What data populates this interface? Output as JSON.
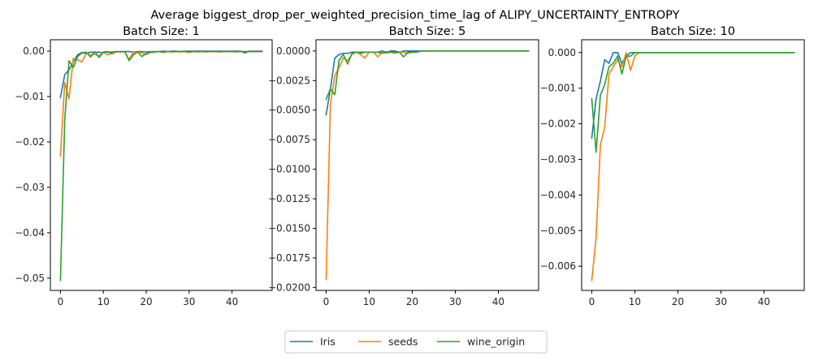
{
  "figure": {
    "title": "Average biggest_drop_per_weighted_precision_time_lag of ALIPY_UNCERTAINTY_ENTROPY"
  },
  "legend": {
    "placement": "bottom-center",
    "entries": [
      {
        "name": "Iris",
        "color": "#1f77b4"
      },
      {
        "name": "seeds",
        "color": "#ff7f0e"
      },
      {
        "name": "wine_origin",
        "color": "#2ca02c"
      }
    ]
  },
  "chart_data": [
    {
      "type": "line",
      "title": "Batch Size: 1",
      "xlabel": "",
      "ylabel": "",
      "xlim": [
        -2.35,
        49.35
      ],
      "ylim": [
        -0.0527,
        0.0025
      ],
      "xticks": [
        0,
        10,
        20,
        30,
        40
      ],
      "xtick_labels": [
        "0",
        "10",
        "20",
        "30",
        "40"
      ],
      "yticks": [
        0.0,
        -0.01,
        -0.02,
        -0.03,
        -0.04,
        -0.05
      ],
      "ytick_labels": [
        "0.00",
        "−0.01",
        "−0.02",
        "−0.03",
        "−0.04",
        "−0.05"
      ],
      "grid": false,
      "x": [
        0,
        1,
        2,
        3,
        4,
        5,
        6,
        7,
        8,
        9,
        10,
        11,
        12,
        13,
        14,
        15,
        16,
        17,
        18,
        19,
        20,
        21,
        22,
        23,
        24,
        25,
        26,
        27,
        28,
        29,
        30,
        31,
        32,
        33,
        34,
        35,
        36,
        37,
        38,
        39,
        40,
        41,
        42,
        43,
        44,
        45,
        46,
        47
      ],
      "series": [
        {
          "name": "Iris",
          "color": "#1f77b4",
          "values": [
            -0.0102,
            -0.0052,
            -0.0041,
            -0.0024,
            -0.0008,
            -0.0003,
            -0.0006,
            -0.0002,
            -0.0003,
            -0.0002,
            -0.0004,
            -0.0002,
            -0.0002,
            -0.0001,
            -0.0002,
            -0.0001,
            -0.0001,
            -0.0002,
            -0.0001,
            -0.0001,
            -0.0002,
            -0.0001,
            -0.0001,
            -0.0001,
            0,
            -0.0001,
            0,
            0,
            -0.0001,
            0,
            0,
            0,
            0,
            0,
            0,
            0,
            0,
            0,
            0,
            0,
            0,
            0,
            0,
            -0.0004,
            0,
            0,
            0,
            0
          ]
        },
        {
          "name": "seeds",
          "color": "#ff7f0e",
          "values": [
            -0.0231,
            -0.0069,
            -0.0105,
            -0.0016,
            -0.0019,
            -0.0024,
            -0.0005,
            -0.0009,
            -0.0007,
            -0.0011,
            -0.0003,
            -0.0008,
            -0.0004,
            -0.0002,
            -0.0001,
            -0.0002,
            -0.0018,
            -0.0003,
            -0.0002,
            -0.0004,
            -0.0008,
            -0.0002,
            -0.0001,
            -0.0001,
            -0.0003,
            -0.0001,
            -0.0002,
            -0.0001,
            -0.0002,
            -0.0001,
            -0.0003,
            -0.0001,
            -0.0002,
            -0.0001,
            -0.0002,
            -0.0001,
            -0.0001,
            -0.0002,
            -0.0001,
            -0.0001,
            -0.0001,
            -0.0002,
            -0.0001,
            -0.0001,
            -0.0001,
            -0.0001,
            -0.0001,
            -0.0001
          ]
        },
        {
          "name": "wine_origin",
          "color": "#2ca02c",
          "values": [
            -0.0505,
            -0.0152,
            -0.0021,
            -0.0036,
            -0.0012,
            -0.0004,
            -0.0002,
            -0.0013,
            -0.0001,
            -0.0014,
            -0.0002,
            -0.0001,
            -0.0006,
            -0.0001,
            -0.0001,
            -0.0001,
            -0.0021,
            -0.0008,
            -0.0002,
            -0.0012,
            -0.0005,
            -0.0003,
            -0.0002,
            -0.0001,
            -0.0002,
            -0.0001,
            -0.0001,
            -0.0001,
            -0.0001,
            -0.0001,
            -0.0001,
            -0.0001,
            -0.0001,
            -0.0001,
            -0.0001,
            -0.0001,
            -0.0001,
            -0.0001,
            -0.0001,
            -0.0001,
            -0.0001,
            -0.0001,
            -0.0001,
            -0.0001,
            -0.0001,
            -0.0001,
            -0.0001,
            -0.0001
          ]
        }
      ]
    },
    {
      "type": "line",
      "title": "Batch Size: 5",
      "xlabel": "",
      "ylabel": "",
      "xlim": [
        -2.35,
        49.35
      ],
      "ylim": [
        -0.02025,
        0.00095
      ],
      "xticks": [
        0,
        10,
        20,
        30,
        40
      ],
      "xtick_labels": [
        "0",
        "10",
        "20",
        "30",
        "40"
      ],
      "yticks": [
        0.0,
        -0.0025,
        -0.005,
        -0.0075,
        -0.01,
        -0.0125,
        -0.015,
        -0.0175,
        -0.02
      ],
      "ytick_labels": [
        "0.0000",
        "−0.0025",
        "−0.0050",
        "−0.0075",
        "−0.0100",
        "−0.0125",
        "−0.0150",
        "−0.0175",
        "−0.0200"
      ],
      "grid": false,
      "x": [
        0,
        1,
        2,
        3,
        4,
        5,
        6,
        7,
        8,
        9,
        10,
        11,
        12,
        13,
        14,
        15,
        16,
        17,
        18,
        19,
        20,
        21,
        22,
        23,
        24,
        25,
        26,
        27,
        28,
        29,
        30,
        31,
        32,
        33,
        34,
        35,
        36,
        37,
        38,
        39,
        40,
        41,
        42,
        43,
        44,
        45,
        46,
        47
      ],
      "series": [
        {
          "name": "Iris",
          "color": "#1f77b4",
          "values": [
            -0.0054,
            -0.0032,
            -0.0006,
            -0.0003,
            -0.0002,
            -0.0002,
            -0.0001,
            -0.0001,
            -0.0002,
            -0.0001,
            -0.0001,
            -0.0001,
            -0.0001,
            0,
            -0.0001,
            0,
            0,
            -0.0001,
            0,
            0,
            0,
            0,
            0,
            0,
            0,
            0,
            0,
            0,
            0,
            0,
            0,
            0,
            0,
            0,
            0,
            0,
            0,
            0,
            0,
            0,
            0,
            0,
            0,
            0,
            0,
            0,
            0,
            0
          ]
        },
        {
          "name": "seeds",
          "color": "#ff7f0e",
          "values": [
            -0.0193,
            -0.0045,
            -0.0021,
            -0.0014,
            -0.0006,
            -0.0008,
            -0.0003,
            -0.0001,
            -0.0003,
            -0.0006,
            -0.0001,
            -0.0001,
            -0.0005,
            -0.0001,
            -0.0002,
            -0.0001,
            -0.0002,
            -0.0001,
            -0.0001,
            -0.0002,
            -0.0001,
            -0.0001,
            0,
            0,
            0,
            0,
            0,
            0,
            0,
            0,
            0,
            0,
            0,
            0,
            0,
            0,
            0,
            0,
            0,
            0,
            0,
            0,
            0,
            0,
            0,
            0,
            0,
            0
          ]
        },
        {
          "name": "wine_origin",
          "color": "#2ca02c",
          "values": [
            -0.0041,
            -0.0032,
            -0.0037,
            -0.0008,
            -0.0003,
            -0.0011,
            -0.0002,
            -0.0001,
            -0.0001,
            -0.0001,
            -0.0001,
            -0.0001,
            -0.0001,
            -0.0002,
            -0.0001,
            -0.0001,
            -0.0001,
            -0.0001,
            -0.0005,
            -0.0001,
            -0.0001,
            -0.0001,
            0,
            0,
            0,
            0,
            0,
            0,
            0,
            0,
            0,
            0,
            0,
            0,
            0,
            0,
            0,
            0,
            0,
            0,
            0,
            0,
            0,
            0,
            0,
            0,
            0,
            0
          ]
        }
      ]
    },
    {
      "type": "line",
      "title": "Batch Size: 10",
      "xlabel": "",
      "ylabel": "",
      "xlim": [
        -2.35,
        49.35
      ],
      "ylim": [
        -0.00668,
        0.00036
      ],
      "xticks": [
        0,
        10,
        20,
        30,
        40
      ],
      "xtick_labels": [
        "0",
        "10",
        "20",
        "30",
        "40"
      ],
      "yticks": [
        0.0,
        -0.001,
        -0.002,
        -0.003,
        -0.004,
        -0.005,
        -0.006
      ],
      "ytick_labels": [
        "0.000",
        "−0.001",
        "−0.002",
        "−0.003",
        "−0.004",
        "−0.005",
        "−0.006"
      ],
      "grid": false,
      "x": [
        0,
        1,
        2,
        3,
        4,
        5,
        6,
        7,
        8,
        9,
        10,
        11,
        12,
        13,
        14,
        15,
        16,
        17,
        18,
        19,
        20,
        21,
        22,
        23,
        24,
        25,
        26,
        27,
        28,
        29,
        30,
        31,
        32,
        33,
        34,
        35,
        36,
        37,
        38,
        39,
        40,
        41,
        42,
        43,
        44,
        45,
        46,
        47
      ],
      "series": [
        {
          "name": "Iris",
          "color": "#1f77b4",
          "values": [
            -0.0024,
            -0.0013,
            -0.0008,
            -0.0002,
            -0.0003,
            0,
            0,
            -0.0003,
            -0.0001,
            0,
            0,
            0,
            0,
            0,
            0,
            0,
            0,
            0,
            0,
            0,
            0,
            0,
            0,
            0,
            0,
            0,
            0,
            0,
            0,
            0,
            0,
            0,
            0,
            0,
            0,
            0,
            0,
            0,
            0,
            0,
            0,
            0,
            0,
            0,
            0,
            0,
            0,
            0
          ]
        },
        {
          "name": "seeds",
          "color": "#ff7f0e",
          "values": [
            -0.0064,
            -0.0052,
            -0.0026,
            -0.0021,
            -0.0006,
            -0.0004,
            -0.0002,
            -0.0004,
            0,
            -0.0005,
            -0.0001,
            0,
            0,
            0,
            0,
            0,
            0,
            0,
            0,
            0,
            0,
            0,
            0,
            0,
            0,
            0,
            0,
            0,
            0,
            0,
            0,
            0,
            0,
            0,
            0,
            0,
            0,
            0,
            0,
            0,
            0,
            0,
            0,
            0,
            0,
            0,
            0,
            0
          ]
        },
        {
          "name": "wine_origin",
          "color": "#2ca02c",
          "values": [
            -0.0013,
            -0.0028,
            -0.0012,
            -0.0009,
            -0.0004,
            -0.0003,
            -0.0001,
            -0.0006,
            -0.0001,
            -0.0001,
            0,
            0,
            0,
            0,
            0,
            0,
            0,
            0,
            0,
            0,
            0,
            0,
            0,
            0,
            0,
            0,
            0,
            0,
            0,
            0,
            0,
            0,
            0,
            0,
            0,
            0,
            0,
            0,
            0,
            0,
            0,
            0,
            0,
            0,
            0,
            0,
            0,
            0
          ]
        }
      ]
    }
  ]
}
